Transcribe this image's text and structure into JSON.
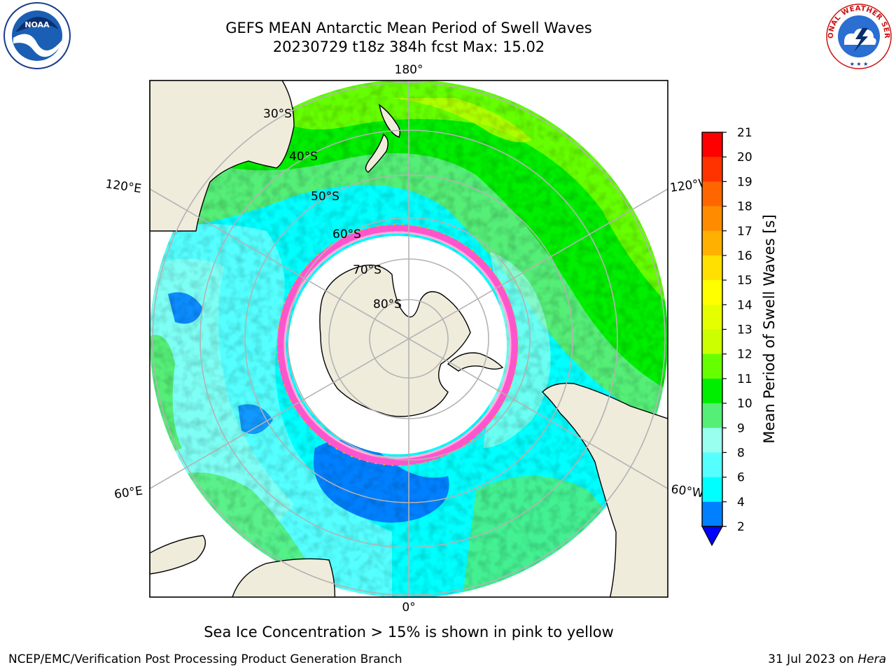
{
  "header": {
    "title_line1": "GEFS MEAN Antarctic Mean Period of Swell Waves",
    "title_line2": "20230729 t18z 384h fcst   Max: 15.02"
  },
  "logos": {
    "left": {
      "text": "NOAA",
      "icon": "noaa-logo-icon"
    },
    "right": {
      "text": "NATIONAL WEATHER SERVICE",
      "icon": "nws-logo-icon"
    }
  },
  "map": {
    "projection": "south-polar-stereographic",
    "lon_labels": [
      "180°",
      "120°E",
      "120°W",
      "60°E",
      "60°W",
      "0°"
    ],
    "lat_labels": [
      "30°S",
      "40°S",
      "50°S",
      "60°S",
      "70°S",
      "80°S"
    ],
    "colors": {
      "land": "#efecdc",
      "sea_ice": "#ffffff",
      "ice_edge": "#ff55cc",
      "grid": "#b3b3b3"
    }
  },
  "colorbar": {
    "label": "Mean Period of Swell Waves [s]",
    "ticks": [
      "21",
      "20",
      "19",
      "18",
      "17",
      "16",
      "15",
      "14",
      "13",
      "12",
      "11",
      "10",
      "9",
      "8",
      "6",
      "4",
      "2"
    ],
    "colors": [
      "#ff0000",
      "#ff3300",
      "#ff6600",
      "#ff8c00",
      "#ffb000",
      "#ffe000",
      "#ffff00",
      "#e6ff00",
      "#ccff00",
      "#66ff00",
      "#00ee00",
      "#55ee77",
      "#99ffee",
      "#55ffff",
      "#00ffff",
      "#0080ff"
    ],
    "extend_color": "#0000ff"
  },
  "caption": "Sea Ice Concentration > 15% is shown in pink to yellow",
  "footer": {
    "left": "NCEP/EMC/Verification Post Processing Product Generation Branch",
    "right_date": "31 Jul 2023 on ",
    "right_host": "Hera"
  }
}
